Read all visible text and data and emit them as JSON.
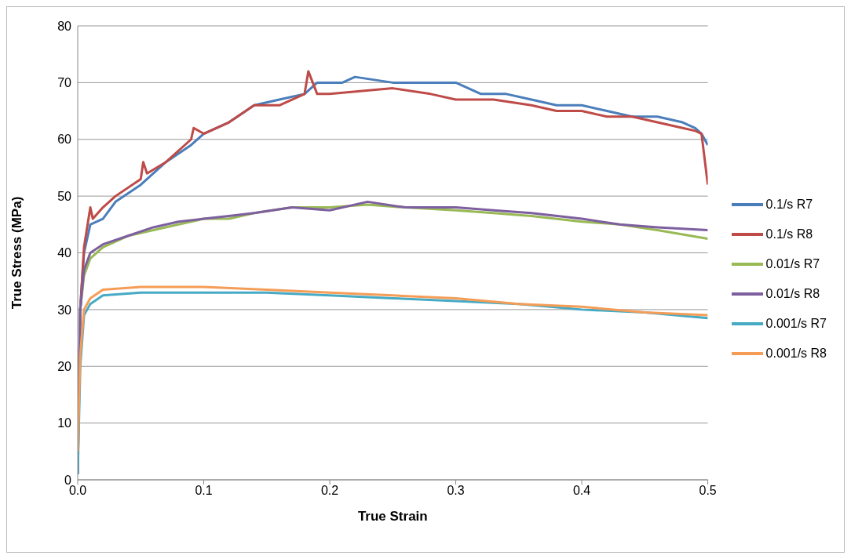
{
  "chart_data": {
    "type": "line",
    "xlabel": "True Strain",
    "ylabel": "True Stress (MPa)",
    "xlim": [
      0,
      0.5
    ],
    "xticks": [
      {
        "value": 0,
        "label": "0.0"
      },
      0.1,
      0.2,
      0.3,
      0.4,
      0.5
    ],
    "ylim": [
      0,
      80
    ],
    "yticks": [
      0,
      10,
      20,
      30,
      40,
      50,
      60,
      70,
      80
    ],
    "grid": "y",
    "legend": "right",
    "marker": "none",
    "line_style": "solid",
    "series": [
      {
        "name": "0.1/s R7",
        "color": "#4a7ebb",
        "x": [
          0,
          0.002,
          0.005,
          0.01,
          0.02,
          0.03,
          0.05,
          0.07,
          0.09,
          0.1,
          0.12,
          0.14,
          0.16,
          0.18,
          0.19,
          0.21,
          0.22,
          0.25,
          0.28,
          0.3,
          0.32,
          0.34,
          0.36,
          0.38,
          0.4,
          0.42,
          0.44,
          0.46,
          0.48,
          0.49,
          0.495,
          0.5
        ],
        "values": [
          1,
          30,
          40,
          45,
          46,
          49,
          52,
          56,
          59,
          61,
          63,
          66,
          67,
          68,
          70,
          70,
          71,
          70,
          70,
          70,
          68,
          68,
          67,
          66,
          66,
          65,
          64,
          64,
          63,
          62,
          61,
          59
        ]
      },
      {
        "name": "0.1/s R8",
        "color": "#be4b48",
        "x": [
          0,
          0.002,
          0.005,
          0.01,
          0.012,
          0.02,
          0.03,
          0.05,
          0.052,
          0.055,
          0.07,
          0.09,
          0.092,
          0.1,
          0.12,
          0.14,
          0.16,
          0.18,
          0.183,
          0.19,
          0.2,
          0.25,
          0.28,
          0.3,
          0.33,
          0.36,
          0.38,
          0.4,
          0.42,
          0.44,
          0.46,
          0.48,
          0.49,
          0.495,
          0.5
        ],
        "values": [
          1,
          30,
          41,
          48,
          46,
          48,
          50,
          53,
          56,
          54,
          56,
          60,
          62,
          61,
          63,
          66,
          66,
          68,
          72,
          68,
          68,
          69,
          68,
          67,
          67,
          66,
          65,
          65,
          64,
          64,
          63,
          62,
          61.5,
          61,
          52
        ]
      },
      {
        "name": "0.01/s R7",
        "color": "#98b954",
        "x": [
          0,
          0.002,
          0.005,
          0.01,
          0.02,
          0.04,
          0.06,
          0.08,
          0.1,
          0.12,
          0.14,
          0.17,
          0.2,
          0.23,
          0.26,
          0.3,
          0.33,
          0.36,
          0.4,
          0.43,
          0.46,
          0.5
        ],
        "values": [
          5,
          30,
          36,
          39,
          41,
          43,
          44,
          45,
          46,
          46,
          47,
          48,
          48,
          48.5,
          48,
          47.5,
          47,
          46.5,
          45.5,
          45,
          44,
          42.5
        ]
      },
      {
        "name": "0.01/s R8",
        "color": "#7d5fa0",
        "x": [
          0,
          0.002,
          0.005,
          0.01,
          0.02,
          0.04,
          0.06,
          0.08,
          0.1,
          0.12,
          0.14,
          0.17,
          0.2,
          0.23,
          0.26,
          0.3,
          0.33,
          0.36,
          0.4,
          0.43,
          0.46,
          0.5
        ],
        "values": [
          5,
          30,
          37,
          40,
          41.5,
          43,
          44.5,
          45.5,
          46,
          46.5,
          47,
          48,
          47.5,
          49,
          48,
          48,
          47.5,
          47,
          46,
          45,
          44.5,
          44
        ]
      },
      {
        "name": "0.001/s R7",
        "color": "#46aac5",
        "x": [
          0,
          0.002,
          0.005,
          0.01,
          0.02,
          0.05,
          0.1,
          0.15,
          0.2,
          0.25,
          0.3,
          0.35,
          0.4,
          0.45,
          0.5
        ],
        "values": [
          1,
          20,
          29,
          31,
          32.5,
          33,
          33,
          33,
          32.5,
          32,
          31.5,
          31,
          30,
          29.5,
          28.5
        ]
      },
      {
        "name": "0.001/s R8",
        "color": "#f59d56",
        "x": [
          0,
          0.002,
          0.005,
          0.01,
          0.02,
          0.05,
          0.1,
          0.15,
          0.2,
          0.25,
          0.3,
          0.35,
          0.4,
          0.45,
          0.5
        ],
        "values": [
          5,
          22,
          30,
          32,
          33.5,
          34,
          34,
          33.5,
          33,
          32.5,
          32,
          31,
          30.5,
          29.5,
          29
        ]
      }
    ]
  }
}
